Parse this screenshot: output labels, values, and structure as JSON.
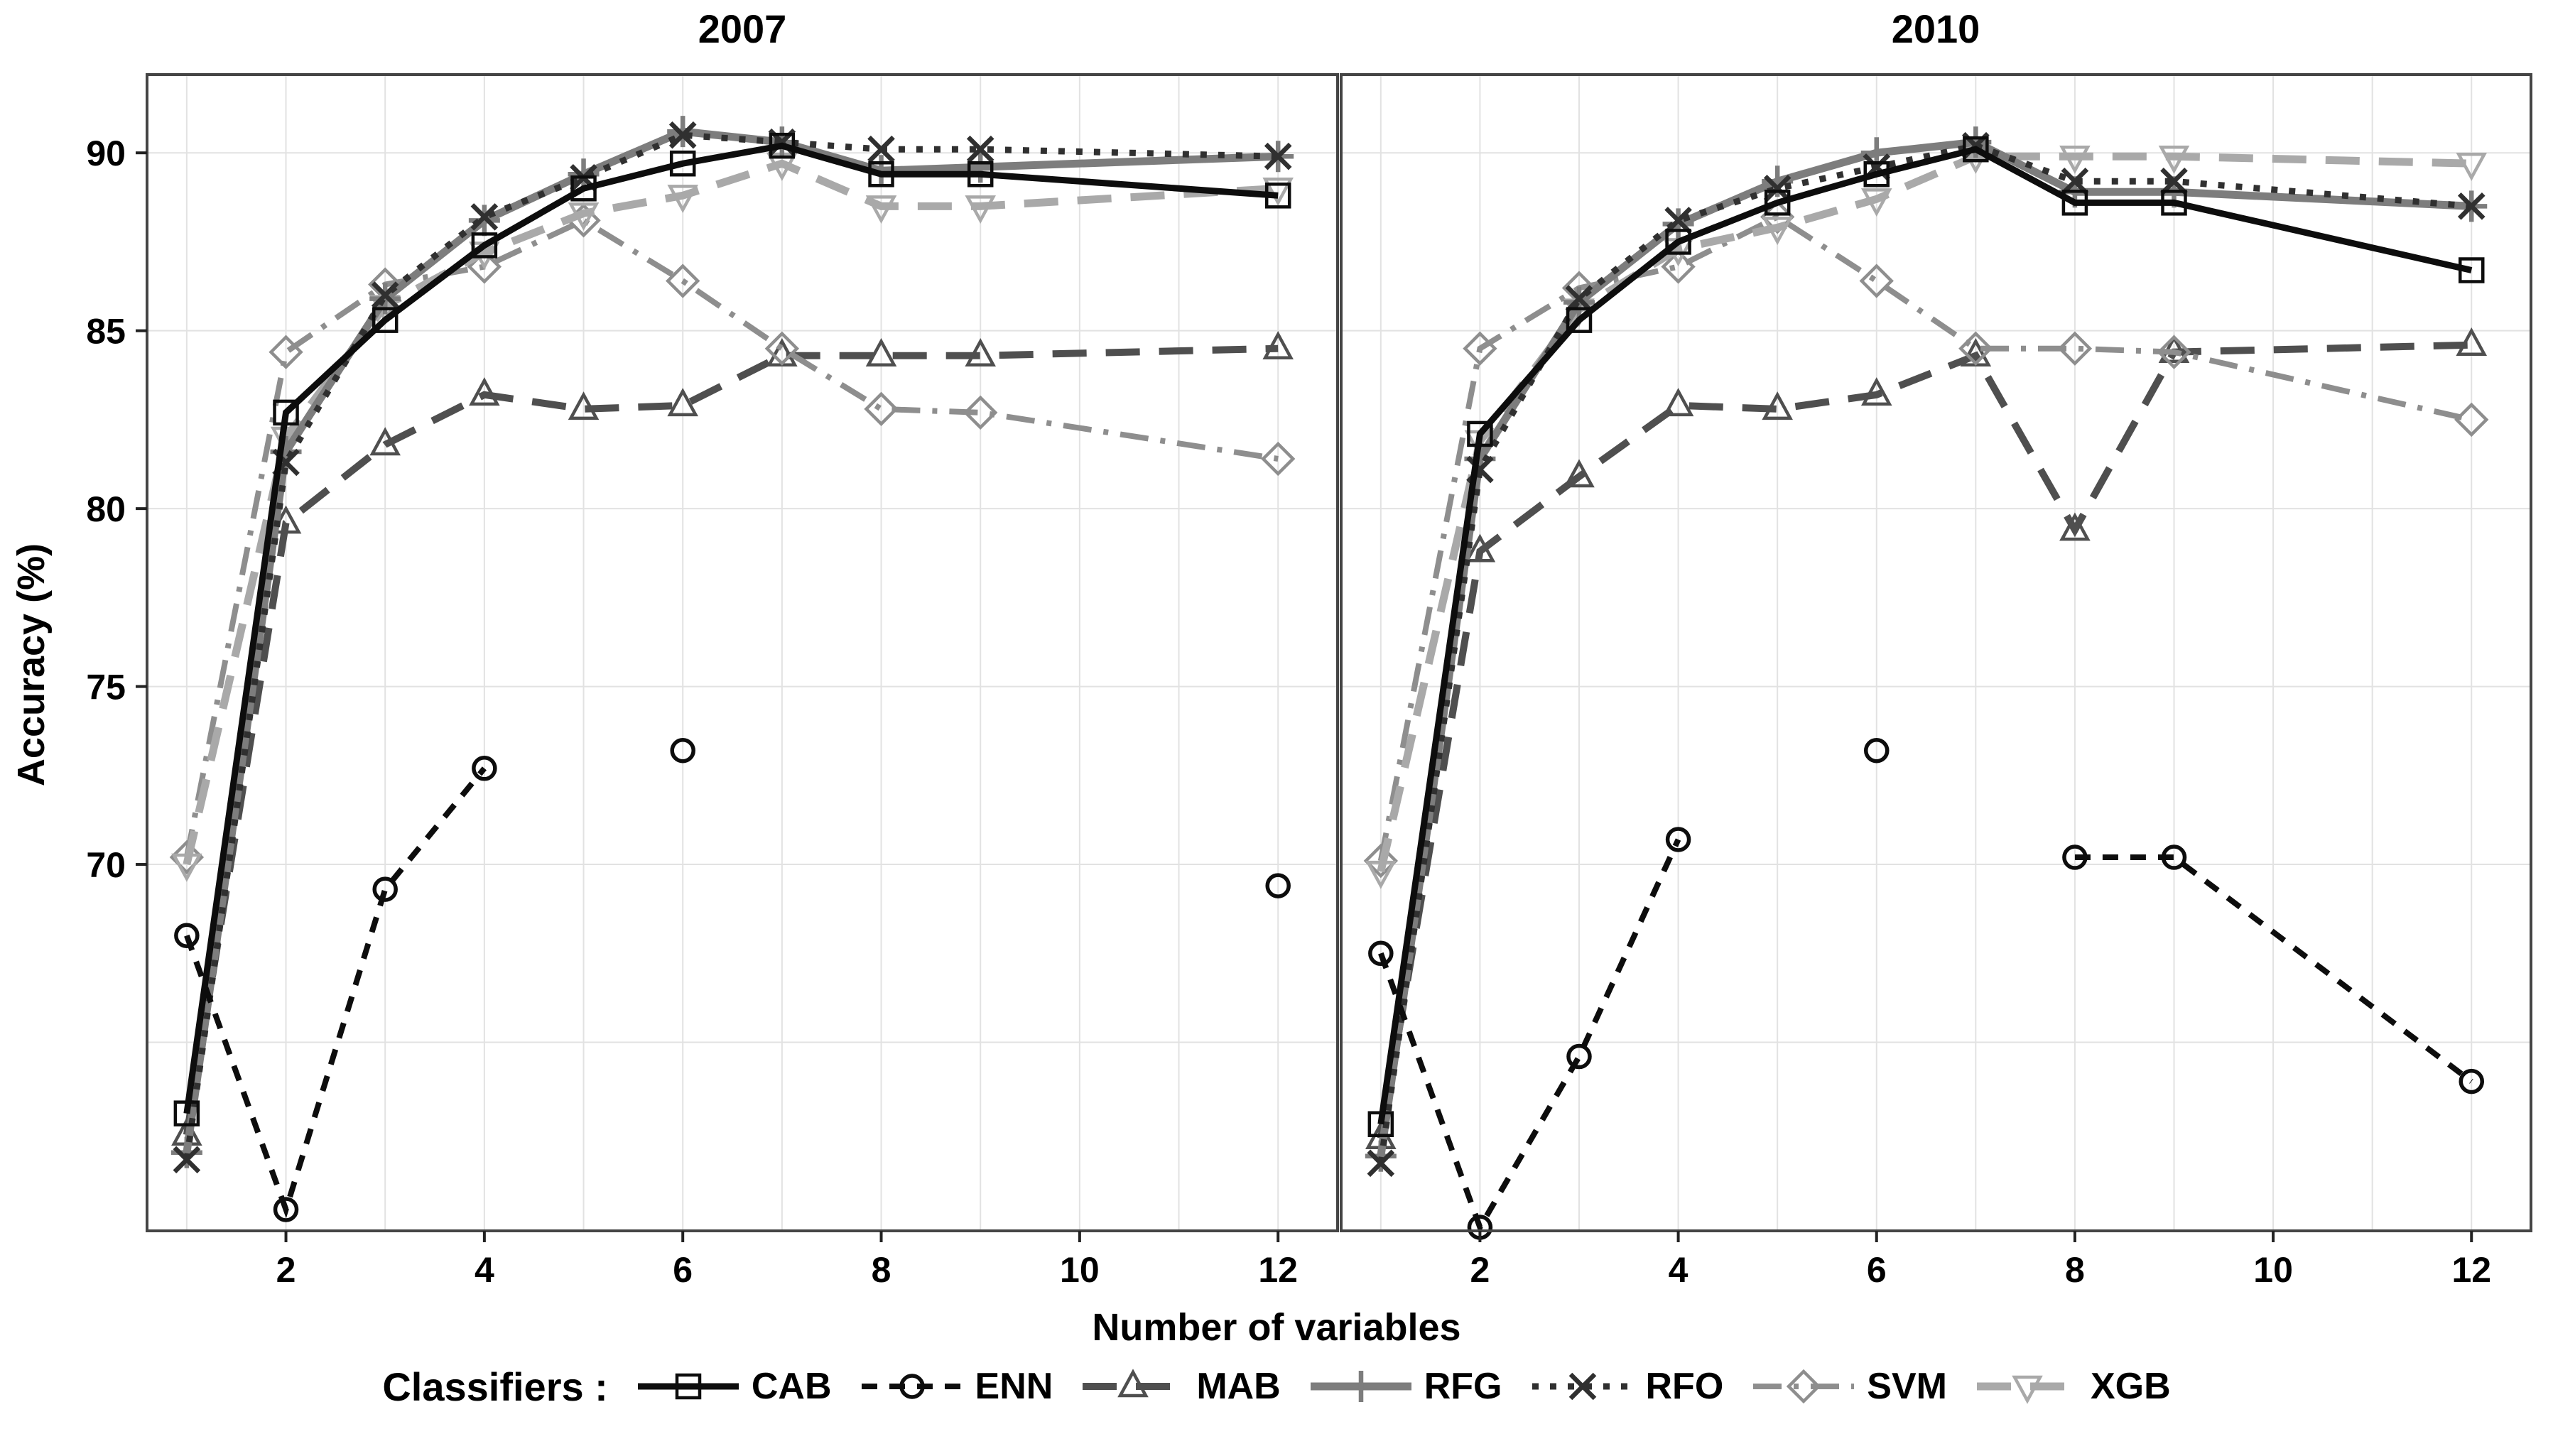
{
  "chart_data": {
    "type": "line",
    "xlabel": "Number of variables",
    "ylabel": "Accuracy (%)",
    "legend_title": "Classifiers :",
    "x_values": [
      1,
      2,
      3,
      4,
      5,
      6,
      7,
      8,
      9,
      12
    ],
    "x_ticks": [
      2,
      4,
      6,
      8,
      10,
      12
    ],
    "y_ticks": [
      70,
      75,
      80,
      85,
      90
    ],
    "grid_x": [
      1,
      2,
      3,
      4,
      5,
      6,
      7,
      8,
      9,
      10,
      11,
      12
    ],
    "grid_y": [
      65,
      70,
      75,
      80,
      85,
      90
    ],
    "xlim": [
      0.6,
      12.6
    ],
    "ylim": [
      59.7,
      92.2
    ],
    "grid_color": "#e2e2e2",
    "border_color": "#454545",
    "facets": [
      {
        "title": "2007",
        "series": [
          {
            "name": "CAB",
            "marker": "square",
            "line_style": "solid",
            "color": "#0d0d0d",
            "width": 9,
            "values": [
              63.0,
              82.7,
              85.3,
              87.4,
              89.0,
              89.7,
              90.2,
              89.4,
              89.4,
              88.8
            ]
          },
          {
            "name": "ENN",
            "marker": "circle",
            "line_style": "dashed",
            "color": "#0d0d0d",
            "width": 8,
            "values": [
              68.0,
              60.3,
              69.3,
              72.7,
              null,
              73.2,
              null,
              null,
              null,
              69.4
            ]
          },
          {
            "name": "MAB",
            "marker": "triangle-up",
            "line_style": "long-dash",
            "color": "#4f4f4f",
            "width": 10,
            "values": [
              62.4,
              79.6,
              81.8,
              83.2,
              82.8,
              82.9,
              84.3,
              84.3,
              84.3,
              84.5
            ]
          },
          {
            "name": "RFG",
            "marker": "plus",
            "line_style": "solid",
            "color": "#7d7d7d",
            "width": 11,
            "values": [
              61.9,
              81.6,
              85.9,
              88.1,
              89.4,
              90.6,
              90.3,
              89.5,
              89.6,
              89.9
            ]
          },
          {
            "name": "RFO",
            "marker": "x",
            "line_style": "dotted",
            "color": "#303030",
            "width": 9,
            "values": [
              61.7,
              81.3,
              86.0,
              88.2,
              89.3,
              90.5,
              90.3,
              90.1,
              90.1,
              89.9
            ]
          },
          {
            "name": "SVM",
            "marker": "diamond",
            "line_style": "dash-dot",
            "color": "#8e8e8e",
            "width": 8,
            "values": [
              70.2,
              84.4,
              86.3,
              86.8,
              88.1,
              86.4,
              84.5,
              82.8,
              82.7,
              81.4
            ]
          },
          {
            "name": "XGB",
            "marker": "triangle-down",
            "line_style": "long-dash",
            "color": "#a9a9a9",
            "width": 11,
            "values": [
              70.0,
              82.0,
              85.7,
              87.2,
              88.3,
              88.8,
              89.7,
              88.5,
              88.5,
              89.0
            ]
          }
        ]
      },
      {
        "title": "2010",
        "series": [
          {
            "name": "CAB",
            "marker": "square",
            "line_style": "solid",
            "color": "#0d0d0d",
            "width": 9,
            "values": [
              62.7,
              82.1,
              85.3,
              87.5,
              88.6,
              89.4,
              90.1,
              88.6,
              88.6,
              86.7
            ]
          },
          {
            "name": "ENN",
            "marker": "circle",
            "line_style": "dashed",
            "color": "#0d0d0d",
            "width": 8,
            "values": [
              67.5,
              59.8,
              64.6,
              70.7,
              null,
              73.2,
              null,
              70.2,
              70.2,
              63.9
            ]
          },
          {
            "name": "MAB",
            "marker": "triangle-up",
            "line_style": "long-dash",
            "color": "#4f4f4f",
            "width": 10,
            "values": [
              62.3,
              78.8,
              80.9,
              82.9,
              82.8,
              83.2,
              84.3,
              79.4,
              84.4,
              84.6
            ]
          },
          {
            "name": "RFG",
            "marker": "plus",
            "line_style": "solid",
            "color": "#7d7d7d",
            "width": 11,
            "values": [
              61.8,
              81.4,
              85.8,
              88.0,
              89.2,
              90.0,
              90.3,
              88.9,
              88.9,
              88.5
            ]
          },
          {
            "name": "RFO",
            "marker": "x",
            "line_style": "dotted",
            "color": "#303030",
            "width": 9,
            "values": [
              61.6,
              81.1,
              85.9,
              88.1,
              89.0,
              89.6,
              90.2,
              89.2,
              89.2,
              88.5
            ]
          },
          {
            "name": "SVM",
            "marker": "diamond",
            "line_style": "dash-dot",
            "color": "#8e8e8e",
            "width": 8,
            "values": [
              70.1,
              84.5,
              86.2,
              86.8,
              88.2,
              86.4,
              84.5,
              84.5,
              84.4,
              82.5
            ]
          },
          {
            "name": "XGB",
            "marker": "triangle-down",
            "line_style": "long-dash",
            "color": "#a9a9a9",
            "width": 11,
            "values": [
              69.8,
              81.9,
              85.6,
              87.3,
              87.9,
              88.7,
              89.9,
              89.9,
              89.9,
              89.7
            ]
          }
        ]
      }
    ]
  }
}
